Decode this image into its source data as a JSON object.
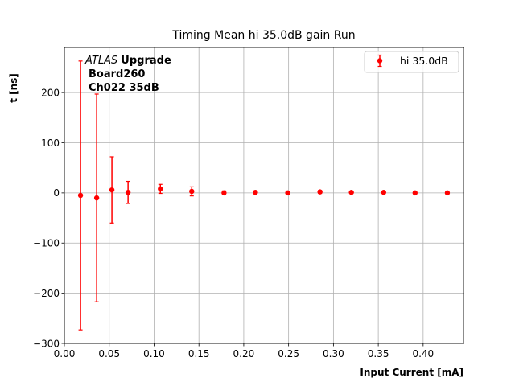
{
  "chart_data": {
    "type": "scatter",
    "title": "Timing Mean hi 35.0dB gain Run",
    "xlabel": "Input Current [mA]",
    "ylabel": "t [ns]",
    "xlim": [
      0.0,
      0.445
    ],
    "ylim": [
      -300,
      290
    ],
    "xticks": [
      0.0,
      0.05,
      0.1,
      0.15,
      0.2,
      0.25,
      0.3,
      0.35,
      0.4
    ],
    "xtick_labels": [
      "0.00",
      "0.05",
      "0.10",
      "0.15",
      "0.20",
      "0.25",
      "0.30",
      "0.35",
      "0.40"
    ],
    "yticks": [
      -300,
      -200,
      -100,
      0,
      100,
      200
    ],
    "ytick_labels": [
      "−300",
      "−200",
      "−100",
      "0",
      "100",
      "200"
    ],
    "grid": true,
    "legend_position": "top-right",
    "color": "#ff0000",
    "annotation": {
      "atlas": "ATLAS",
      "upgrade": "Upgrade",
      "board": "Board260",
      "channel": "Ch022 35dB"
    },
    "series": [
      {
        "name": "hi 35.0dB",
        "x": [
          0.018,
          0.036,
          0.053,
          0.071,
          0.107,
          0.142,
          0.178,
          0.213,
          0.249,
          0.285,
          0.32,
          0.356,
          0.391,
          0.427
        ],
        "y": [
          -5,
          -10,
          6,
          1,
          8,
          3,
          0,
          1,
          0,
          2,
          1,
          1,
          0,
          0
        ],
        "yerr": [
          268,
          207,
          66,
          22,
          9,
          9,
          4,
          3,
          2,
          3,
          2,
          2,
          2,
          2
        ]
      }
    ]
  }
}
